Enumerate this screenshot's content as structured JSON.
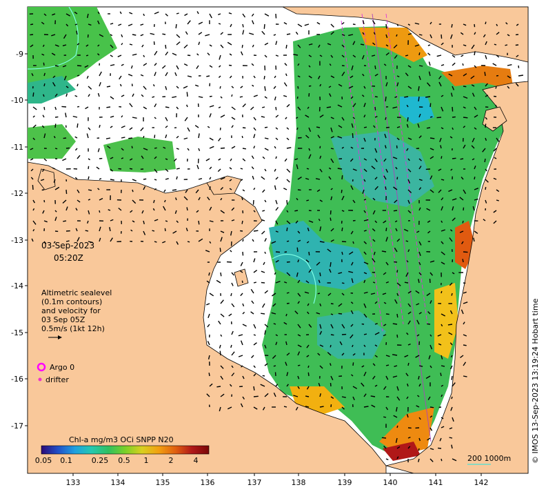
{
  "colors": {
    "land": "#f9c89a",
    "coast": "#000000",
    "water_low": "#19b7c9",
    "water_mid": "#3aa99a",
    "water_green": "#48c24a",
    "water_yellow": "#f2c11a",
    "water_orange": "#ee8a10",
    "water_red": "#b01818",
    "argo": "#ff00ff",
    "drifter": "#ee33cc",
    "contour": "#7fffe6",
    "scalebar": "#66ddcc"
  },
  "axes": {
    "x_ticks": [
      "133",
      "134",
      "135",
      "136",
      "137",
      "138",
      "139",
      "140",
      "141",
      "142"
    ],
    "y_ticks": [
      "-9",
      "-10",
      "-11",
      "-12",
      "-13",
      "-14",
      "-15",
      "-16",
      "-17"
    ]
  },
  "datetime": {
    "date": "03-Sep-2023",
    "time": "05:20Z"
  },
  "altimetry_note": {
    "line1": "Altimetric sealevel",
    "line2": "(0.1m contours)",
    "line3": "and velocity for",
    "line4": "03 Sep 05Z",
    "line5": "0.5m/s (1kt 12h)"
  },
  "legend": {
    "argo_label": "Argo 0",
    "drifter_label": "drifter"
  },
  "colorbar": {
    "title": "Chl-a mg/m3 OCi SNPP N20",
    "tick_labels": [
      "0.05",
      "0.1",
      "0.25",
      "0.5",
      "1",
      "2",
      "4"
    ],
    "colors": [
      "#2b0a78",
      "#2050c8",
      "#1fa0e0",
      "#25c8b0",
      "#30c060",
      "#7ad028",
      "#d8d020",
      "#f2a010",
      "#e06010",
      "#b01818",
      "#7a0808"
    ]
  },
  "scale": {
    "label": "200  1000m"
  },
  "credit": "© IMOS 13-Sep-2023 13:19:24 Hobart time"
}
